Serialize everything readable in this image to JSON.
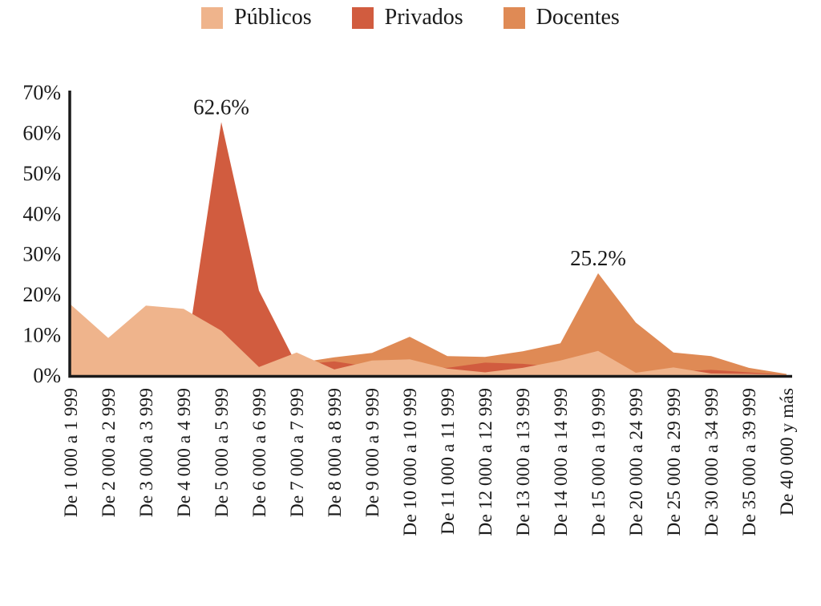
{
  "legend": {
    "items": [
      {
        "label": "Públicos",
        "color": "#EFB48C"
      },
      {
        "label": "Privados",
        "color": "#D15C3F"
      },
      {
        "label": "Docentes",
        "color": "#DF8A55"
      }
    ]
  },
  "chart_data": {
    "type": "area",
    "mode": "overlapping",
    "title": "",
    "xlabel": "",
    "ylabel": "",
    "ylim": [
      0,
      70
    ],
    "y_ticks": [
      0,
      10,
      20,
      30,
      40,
      50,
      60,
      70
    ],
    "y_tick_suffix": "%",
    "grid": false,
    "legend_position": "top-center",
    "categories": [
      "De 1 000 a 1 999",
      "De 2 000 a 2 999",
      "De 3 000 a 3 999",
      "De 4 000 a 4 999",
      "De 5 000 a 5 999",
      "De 6 000 a 6 999",
      "De 7 000 a 7 999",
      "De 8 000 a 8 999",
      "De 9 000 a 9 999",
      "De 10 000 a 10 999",
      "De 11 000 a 11 999",
      "De 12 000 a 12 999",
      "De 13 000 a 13 999",
      "De 14 000 a 14 999",
      "De 15 000 a 19 999",
      "De 20 000 a 24 999",
      "De 25 000 a 29 999",
      "De 30 000 a 34 999",
      "De 35 000 a 39 999",
      "De 40 000 y más"
    ],
    "series": [
      {
        "name": "Públicos",
        "color": "#EFB48C",
        "values": [
          17.5,
          9.2,
          17.2,
          16.4,
          11.0,
          2.0,
          5.6,
          1.4,
          3.6,
          3.9,
          1.6,
          0.7,
          1.8,
          3.6,
          6.0,
          0.6,
          1.9,
          0.4,
          0.3,
          0.1
        ]
      },
      {
        "name": "Privados",
        "color": "#D15C3F",
        "values": [
          0.5,
          0.3,
          0.5,
          0.8,
          62.6,
          20.9,
          2.6,
          3.4,
          2.0,
          2.2,
          1.8,
          3.1,
          2.8,
          2.0,
          2.0,
          0.5,
          0.9,
          1.3,
          0.7,
          0.1
        ]
      },
      {
        "name": "Docentes",
        "color": "#DF8A55",
        "values": [
          1.0,
          0.8,
          1.2,
          1.5,
          3.0,
          3.0,
          3.0,
          4.4,
          5.5,
          9.5,
          4.7,
          4.5,
          5.9,
          7.9,
          25.2,
          13.0,
          5.6,
          4.7,
          1.8,
          0.3
        ]
      }
    ],
    "draw_order": [
      "Docentes",
      "Privados",
      "Públicos"
    ],
    "annotations": [
      {
        "text": "62.6%",
        "series": "Privados",
        "category_index": 4,
        "value": 62.6
      },
      {
        "text": "25.2%",
        "series": "Docentes",
        "category_index": 14,
        "value": 25.2
      }
    ],
    "axis_color": "#1a1a1a"
  }
}
